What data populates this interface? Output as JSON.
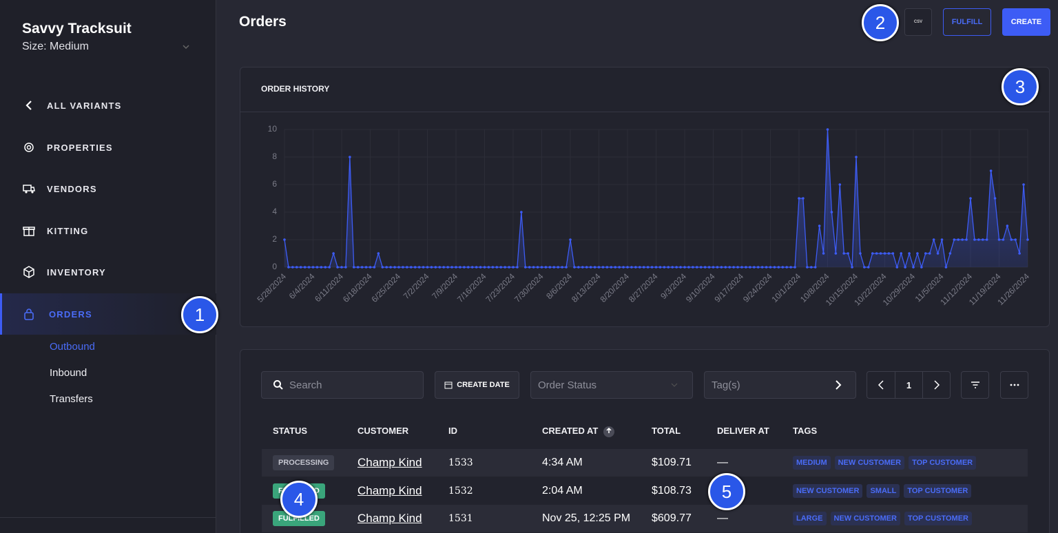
{
  "sidebar": {
    "title": "Savvy Tracksuit",
    "subtitle": "Size: Medium",
    "nav": [
      "ALL VARIANTS",
      "PROPERTIES",
      "VENDORS",
      "KITTING",
      "INVENTORY",
      "ORDERS"
    ],
    "subnav": [
      "Outbound",
      "Inbound",
      "Transfers"
    ]
  },
  "header": {
    "title": "Orders",
    "csv": "CSV",
    "fulfill": "FULFILL",
    "create": "CREATE"
  },
  "chart_data": {
    "type": "line",
    "title": "ORDER HISTORY",
    "color": "#3d5cf5",
    "grid": true,
    "ylim": [
      0,
      10
    ],
    "yticks": [
      0,
      2,
      4,
      6,
      8,
      10
    ],
    "categories": [
      "5/28/2024",
      null,
      null,
      null,
      null,
      null,
      null,
      "6/4/2024",
      null,
      null,
      null,
      null,
      null,
      null,
      "6/11/2024",
      null,
      null,
      null,
      null,
      null,
      null,
      "6/18/2024",
      null,
      null,
      null,
      null,
      null,
      null,
      "6/25/2024",
      null,
      null,
      null,
      null,
      null,
      null,
      "7/2/2024",
      null,
      null,
      null,
      null,
      null,
      null,
      "7/9/2024",
      null,
      null,
      null,
      null,
      null,
      null,
      "7/16/2024",
      null,
      null,
      null,
      null,
      null,
      null,
      "7/23/2024",
      null,
      null,
      null,
      null,
      null,
      null,
      "7/30/2024",
      null,
      null,
      null,
      null,
      null,
      null,
      "8/6/2024",
      null,
      null,
      null,
      null,
      null,
      null,
      "8/13/2024",
      null,
      null,
      null,
      null,
      null,
      null,
      "8/20/2024",
      null,
      null,
      null,
      null,
      null,
      null,
      "8/27/2024",
      null,
      null,
      null,
      null,
      null,
      null,
      "9/3/2024",
      null,
      null,
      null,
      null,
      null,
      null,
      "9/10/2024",
      null,
      null,
      null,
      null,
      null,
      null,
      "9/17/2024",
      null,
      null,
      null,
      null,
      null,
      null,
      "9/24/2024",
      null,
      null,
      null,
      null,
      null,
      null,
      "10/1/2024",
      null,
      null,
      null,
      null,
      null,
      null,
      "10/8/2024",
      null,
      null,
      null,
      null,
      null,
      null,
      "10/15/2024",
      null,
      null,
      null,
      null,
      null,
      null,
      "10/22/2024",
      null,
      null,
      null,
      null,
      null,
      null,
      "10/29/2024",
      null,
      null,
      null,
      null,
      null,
      null,
      "11/5/2024",
      null,
      null,
      null,
      null,
      null,
      null,
      "11/12/2024",
      null,
      null,
      null,
      null,
      null,
      null,
      "11/19/2024",
      null,
      null,
      null,
      null,
      null,
      null,
      "11/26/2024"
    ],
    "values": [
      2,
      0,
      0,
      0,
      0,
      0,
      0,
      0,
      0,
      0,
      0,
      0,
      1,
      0,
      0,
      0,
      8,
      0,
      0,
      0,
      0,
      0,
      0,
      1,
      0,
      0,
      0,
      0,
      0,
      0,
      0,
      0,
      0,
      0,
      0,
      0,
      0,
      0,
      0,
      0,
      0,
      0,
      0,
      0,
      0,
      0,
      0,
      0,
      0,
      0,
      0,
      0,
      0,
      0,
      0,
      0,
      0,
      0,
      4,
      0,
      0,
      0,
      0,
      0,
      0,
      0,
      0,
      0,
      0,
      0,
      2,
      0,
      0,
      0,
      0,
      0,
      0,
      0,
      0,
      0,
      0,
      0,
      0,
      0,
      0,
      0,
      0,
      0,
      0,
      0,
      0,
      0,
      0,
      0,
      0,
      0,
      0,
      0,
      0,
      0,
      0,
      0,
      0,
      0,
      0,
      0,
      0,
      0,
      0,
      0,
      0,
      0,
      0,
      0,
      0,
      0,
      0,
      0,
      0,
      0,
      0,
      0,
      0,
      0,
      0,
      0,
      5,
      5,
      0,
      0,
      0,
      3,
      1,
      10,
      4,
      1,
      6,
      1,
      1,
      0,
      8,
      1,
      0,
      0,
      1,
      1,
      1,
      1,
      1,
      1,
      0,
      1,
      0,
      1,
      0,
      1,
      0,
      1,
      1,
      2,
      1,
      2,
      0,
      1,
      2,
      2,
      2,
      2,
      5,
      2,
      2,
      2,
      2,
      7,
      5,
      2,
      2,
      3,
      2,
      2,
      1,
      6,
      2
    ]
  },
  "toolbar": {
    "search": "Search",
    "create_date": "CREATE DATE",
    "order_status": "Order Status",
    "tags": "Tag(s)",
    "page": 1
  },
  "table": {
    "columns": [
      "STATUS",
      "CUSTOMER",
      "ID",
      "CREATED AT",
      "TOTAL",
      "DELIVER AT",
      "TAGS"
    ],
    "rows": [
      [
        "PROCESSING",
        "Champ Kind",
        1533,
        "4:34 AM",
        "$109.71",
        "—",
        [
          "MEDIUM",
          "NEW CUSTOMER",
          "TOP CUSTOMER"
        ]
      ],
      [
        "FULFILLED",
        "Champ Kind",
        1532,
        "2:04 AM",
        "$108.73",
        "—",
        [
          "NEW CUSTOMER",
          "SMALL",
          "TOP CUSTOMER"
        ]
      ],
      [
        "FULFILLED",
        "Champ Kind",
        1531,
        "Nov 25, 12:25 PM",
        "$609.77",
        "—",
        [
          "LARGE",
          "NEW CUSTOMER",
          "TOP CUSTOMER"
        ]
      ]
    ]
  },
  "markers": [
    1,
    2,
    3,
    4,
    5
  ]
}
